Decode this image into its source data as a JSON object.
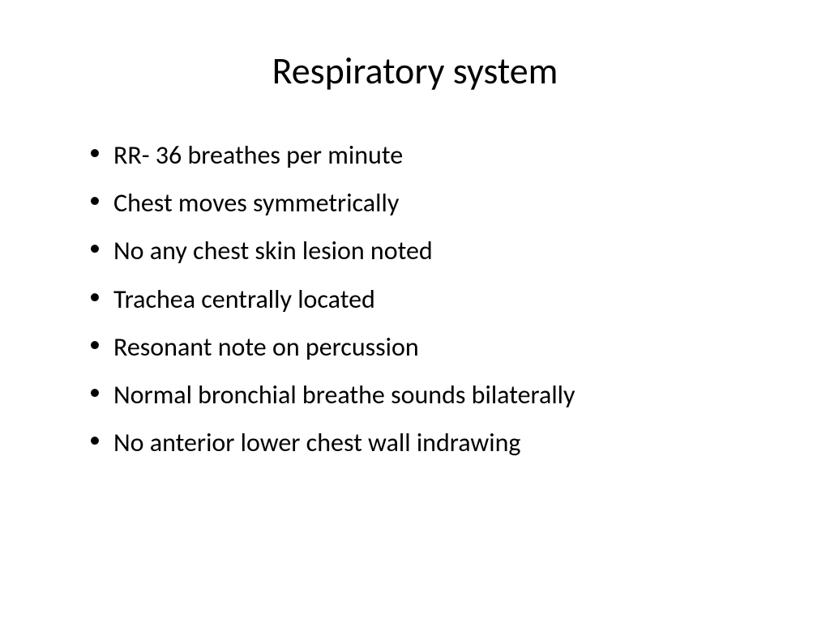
{
  "slide": {
    "title": "Respiratory system",
    "title_fontsize": 46,
    "title_color": "#000000",
    "bullets": [
      "RR- 36 breathes per minute",
      "Chest moves symmetrically",
      "No any chest skin lesion noted",
      "Trachea centrally located",
      "Resonant note on percussion",
      "Normal bronchial breathe sounds bilaterally",
      "No anterior lower chest wall indrawing"
    ],
    "bullet_fontsize": 32,
    "bullet_color": "#000000",
    "background_color": "#ffffff",
    "font_family": "Calibri"
  }
}
